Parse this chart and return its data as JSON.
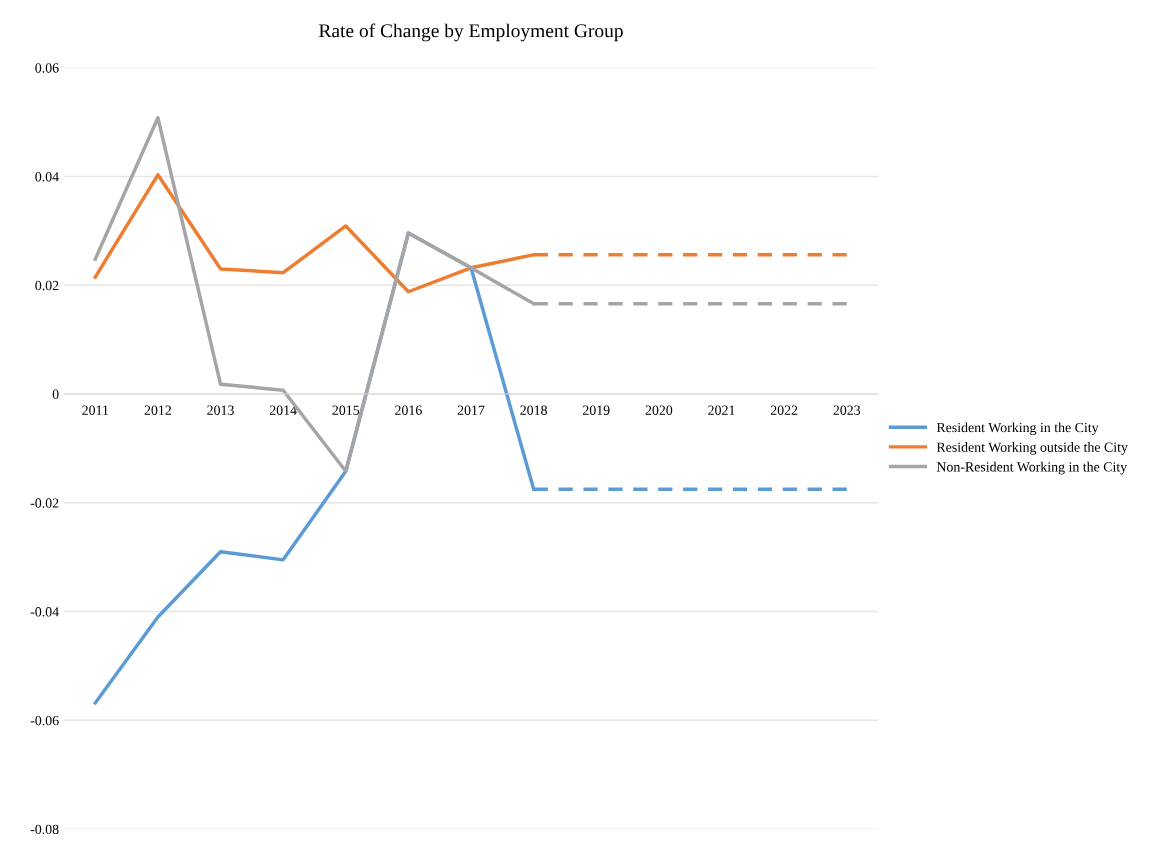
{
  "chart_data": {
    "type": "line",
    "title": "Rate of Change by Employment Group",
    "categories": [
      "2011",
      "2012",
      "2013",
      "2014",
      "2015",
      "2016",
      "2017",
      "2018",
      "2019",
      "2020",
      "2021",
      "2022",
      "2023"
    ],
    "series": [
      {
        "name": "Resident Working in the City",
        "color": "#5b9bd5",
        "values": [
          -0.0568,
          -0.041,
          -0.029,
          -0.0305,
          -0.0142,
          0.0296,
          0.0232,
          -0.0175,
          null,
          null,
          null,
          null,
          null
        ]
      },
      {
        "name": "Resident Working outside the City",
        "color": "#ed7d31",
        "values": [
          0.0215,
          0.0403,
          0.023,
          0.0223,
          0.0309,
          0.0188,
          0.0232,
          0.0256,
          null,
          null,
          null,
          null,
          null
        ]
      },
      {
        "name": "Non-Resident Working in the City",
        "color": "#a5a5a5",
        "values": [
          0.0248,
          0.0508,
          0.0018,
          0.0007,
          -0.0142,
          0.0296,
          0.0232,
          0.0166,
          null,
          null,
          null,
          null,
          null
        ]
      },
      {
        "color": "#5b9bd5",
        "line_style": "dashed",
        "values": [
          null,
          null,
          null,
          null,
          null,
          null,
          null,
          -0.0175,
          -0.0175,
          -0.0175,
          -0.0175,
          -0.0175,
          -0.0175
        ]
      },
      {
        "color": "#ed7d31",
        "line_style": "dashed",
        "values": [
          null,
          null,
          null,
          null,
          null,
          null,
          null,
          0.0256,
          0.0256,
          0.0256,
          0.0256,
          0.0256,
          0.0256
        ]
      },
      {
        "color": "#a5a5a5",
        "line_style": "dashed",
        "values": [
          null,
          null,
          null,
          null,
          null,
          null,
          null,
          0.0166,
          0.0166,
          0.0166,
          0.0166,
          0.0166,
          0.0166
        ]
      }
    ],
    "ylim": [
      -0.08,
      0.06
    ],
    "yticks": [
      -0.08,
      -0.06,
      -0.04,
      -0.02,
      0,
      0.02,
      0.04,
      0.06
    ],
    "grid": "y",
    "legend": "right"
  }
}
